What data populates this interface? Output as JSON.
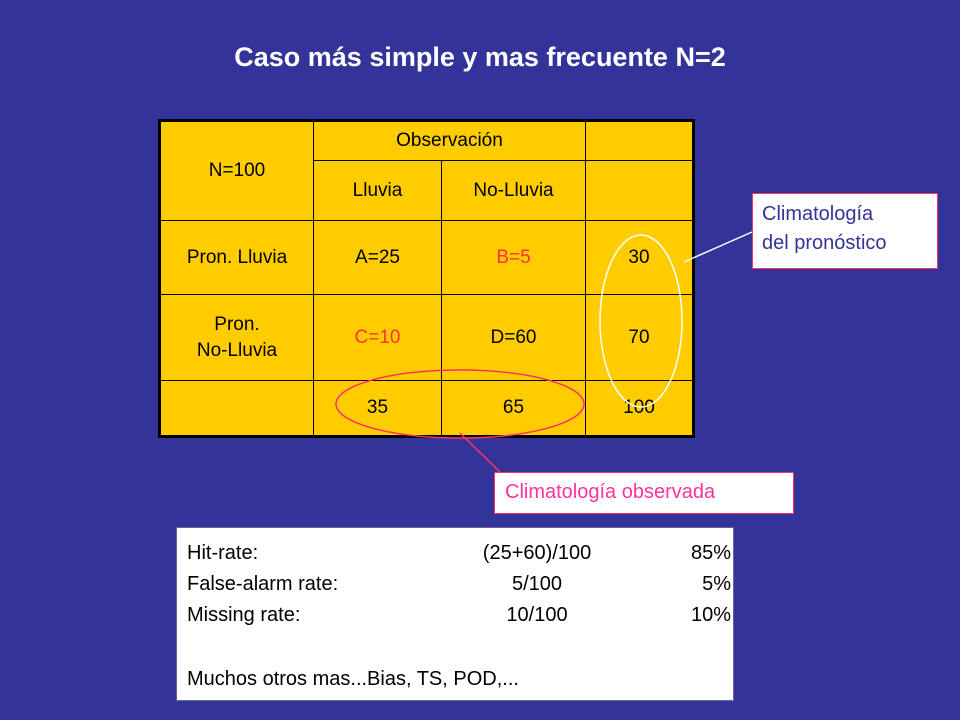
{
  "title": "Caso más simple y mas frecuente N=2",
  "table": {
    "corner": "N=100",
    "observacion": "Observación",
    "lluvia": "Lluvia",
    "no_lluvia": "No-Lluvia",
    "row1_label": "Pron. Lluvia",
    "row2_label_line1": "Pron.",
    "row2_label_line2": "No-Lluvia",
    "a": "A=25",
    "b": "B=5",
    "c": "C=10",
    "d": "D=60",
    "row1_total": "30",
    "row2_total": "70",
    "col1_total": "35",
    "col2_total": "65",
    "grand_total": "100"
  },
  "callouts": {
    "forecast_line1": "Climatología",
    "forecast_line2": "del pronóstico",
    "observed": "Climatología observada"
  },
  "metrics": {
    "rows": [
      {
        "name": "Hit-rate:",
        "formula": "(25+60)/100",
        "value": "85%"
      },
      {
        "name": "False-alarm rate:",
        "formula": "5/100",
        "value": "5%"
      },
      {
        "name": "Missing rate:",
        "formula": "10/100",
        "value": "10%"
      }
    ],
    "note": "Muchos otros mas...Bias, TS, POD,..."
  },
  "colors": {
    "background": "#333399",
    "table_fill": "#ffcc00",
    "highlight_red": "#ff3333",
    "callout_pink": "#ff3399"
  }
}
